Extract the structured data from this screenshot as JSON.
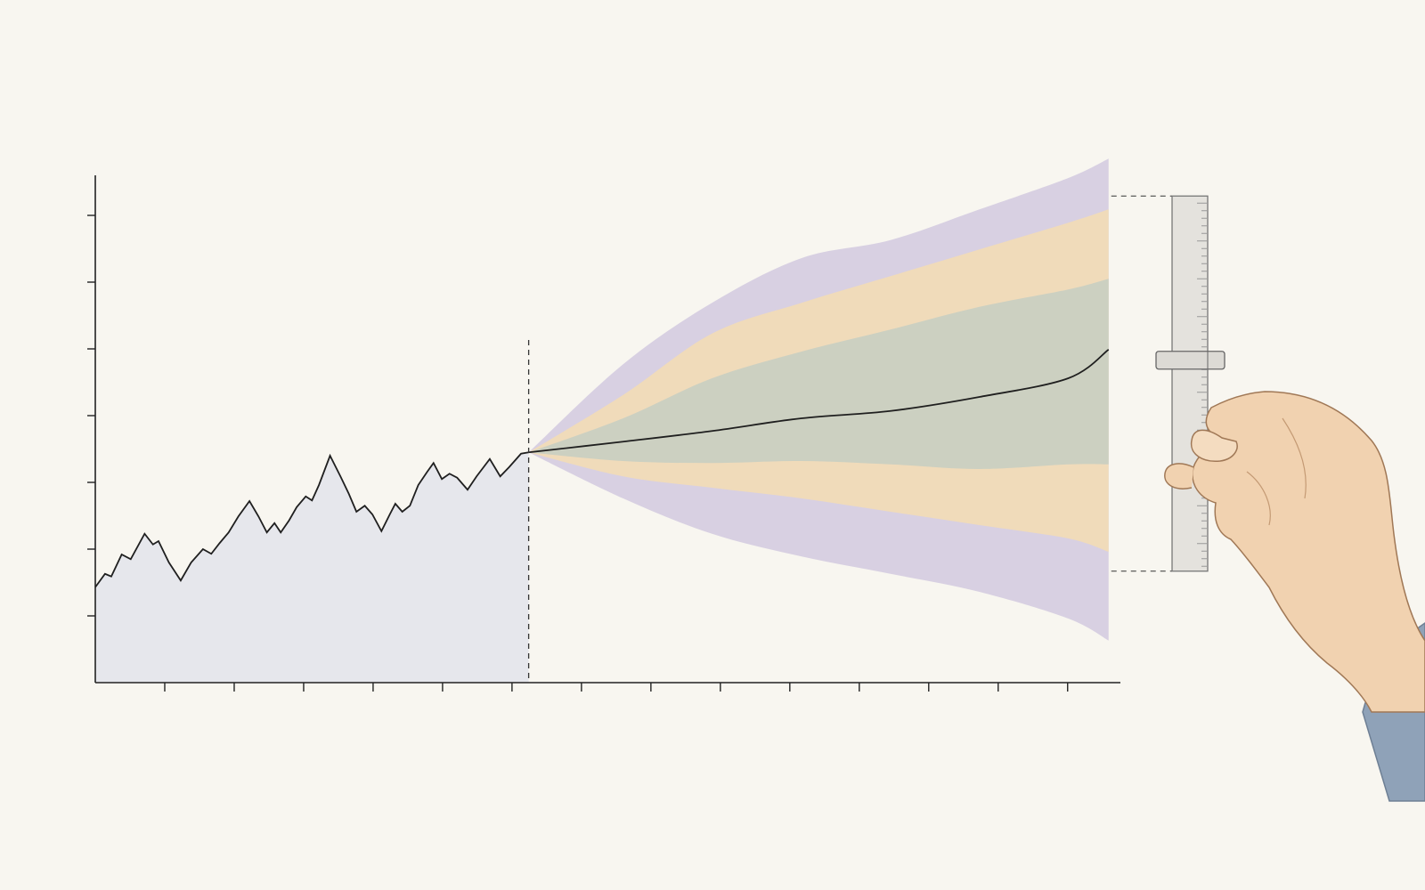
{
  "chart_data": {
    "type": "fan",
    "xlim": [
      0,
      14.76
    ],
    "ylim": [
      0,
      7.6
    ],
    "xticks": [
      1,
      2,
      3,
      4,
      5,
      6,
      7,
      8,
      9,
      10,
      11,
      12,
      13,
      14
    ],
    "yticks": [
      1,
      2,
      3,
      4,
      5,
      6,
      7
    ],
    "history": {
      "color": "#1f1f1f",
      "fill": "#e6e7ec",
      "x": [
        0,
        0.14,
        0.23,
        0.38,
        0.51,
        0.71,
        0.83,
        0.91,
        1.06,
        1.23,
        1.38,
        1.55,
        1.67,
        1.79,
        1.92,
        2.06,
        2.22,
        2.35,
        2.47,
        2.58,
        2.67,
        2.79,
        2.9,
        3.03,
        3.12,
        3.22,
        3.38,
        3.53,
        3.65,
        3.76,
        3.88,
        3.99,
        4.12,
        4.24,
        4.32,
        4.42,
        4.53,
        4.65,
        4.78,
        4.87,
        4.99,
        5.1,
        5.21,
        5.36,
        5.49,
        5.68,
        5.83,
        5.96,
        6.13,
        6.24
      ],
      "values": [
        1.43,
        1.63,
        1.59,
        1.92,
        1.85,
        2.23,
        2.07,
        2.12,
        1.8,
        1.53,
        1.8,
        2.0,
        1.93,
        2.09,
        2.25,
        2.49,
        2.72,
        2.49,
        2.25,
        2.39,
        2.25,
        2.43,
        2.63,
        2.79,
        2.73,
        2.96,
        3.4,
        3.09,
        2.83,
        2.56,
        2.65,
        2.52,
        2.27,
        2.52,
        2.68,
        2.56,
        2.65,
        2.96,
        3.16,
        3.29,
        3.05,
        3.13,
        3.07,
        2.89,
        3.09,
        3.35,
        3.09,
        3.23,
        3.43,
        3.45
      ]
    },
    "forecast_start": 6.24,
    "forecast_x": [
      6.24,
      7.6,
      8.88,
      10.17,
      11.45,
      12.73,
      14.01,
      14.59
    ],
    "bands": [
      {
        "color": "#d4cce0",
        "upper": [
          3.45,
          4.77,
          5.69,
          6.36,
          6.63,
          7.09,
          7.56,
          7.85
        ],
        "lower": [
          3.45,
          2.76,
          2.23,
          1.89,
          1.63,
          1.36,
          0.96,
          0.63
        ]
      },
      {
        "color": "#f3dcb6",
        "upper": [
          3.45,
          4.31,
          5.23,
          5.69,
          6.09,
          6.49,
          6.89,
          7.09
        ],
        "lower": [
          3.45,
          3.09,
          2.92,
          2.76,
          2.56,
          2.36,
          2.16,
          1.96
        ]
      },
      {
        "color": "#c8cec2",
        "upper": [
          3.45,
          3.96,
          4.56,
          4.96,
          5.29,
          5.63,
          5.89,
          6.05
        ],
        "lower": [
          3.45,
          3.32,
          3.29,
          3.32,
          3.27,
          3.2,
          3.27,
          3.27
        ]
      }
    ],
    "median": {
      "color": "#1f1f1f",
      "values": [
        3.45,
        3.61,
        3.77,
        3.96,
        4.07,
        4.28,
        4.56,
        4.99
      ]
    },
    "slider": {
      "min": 1.67,
      "max": 7.29,
      "value": 4.83
    }
  }
}
